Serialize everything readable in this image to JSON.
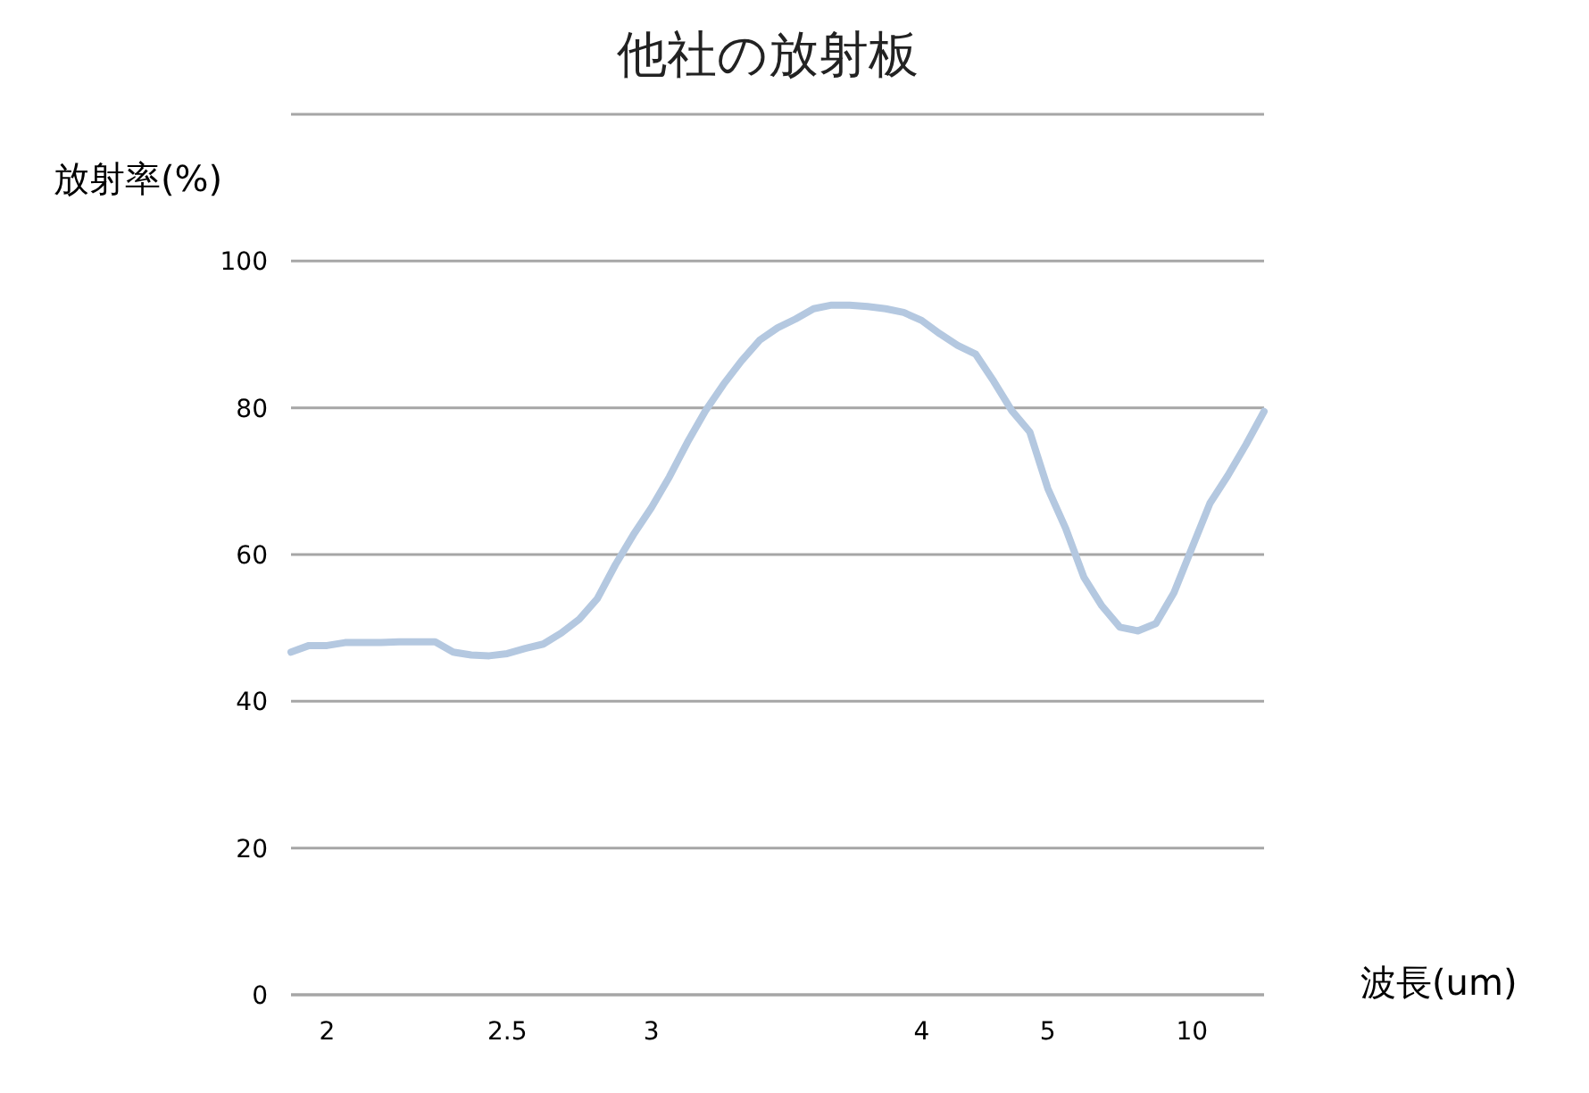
{
  "chart_data": {
    "type": "line",
    "title": "他社の放射板",
    "xlabel": "波長(um)",
    "ylabel": "放射率(%)",
    "categories": [
      null,
      null,
      "2",
      null,
      null,
      null,
      null,
      null,
      null,
      null,
      null,
      null,
      "2.5",
      null,
      null,
      null,
      null,
      null,
      null,
      null,
      "3",
      null,
      null,
      null,
      null,
      null,
      null,
      null,
      null,
      null,
      null,
      null,
      null,
      null,
      null,
      "4",
      null,
      null,
      null,
      null,
      null,
      null,
      "5",
      null,
      null,
      null,
      null,
      null,
      null,
      null,
      "10",
      null,
      null,
      null,
      null
    ],
    "series": [
      {
        "color": "#b4c8e0",
        "values": [
          46.7,
          47.6,
          47.6,
          48,
          48,
          48,
          48.1,
          48.1,
          48.1,
          46.7,
          46.3,
          46.2,
          46.5,
          47.2,
          47.8,
          49.3,
          51.2,
          54,
          58.6,
          62.7,
          66.4,
          70.6,
          75.3,
          79.6,
          83.2,
          86.4,
          89.2,
          90.9,
          92.1,
          93.5,
          94,
          94,
          93.8,
          93.5,
          93,
          91.9,
          90.1,
          88.5,
          87.3,
          83.6,
          79.6,
          76.7,
          69,
          63.5,
          56.9,
          53,
          50.1,
          49.6,
          50.6,
          54.8,
          60.9,
          67,
          70.8,
          75,
          79.5
        ]
      }
    ],
    "ylim": [
      0,
      120
    ],
    "yticks": [
      0,
      20,
      40,
      60,
      80,
      100,
      {
        "value": 120,
        "label": null
      }
    ],
    "grid": "y",
    "marker": "none",
    "line_style": "solid"
  }
}
